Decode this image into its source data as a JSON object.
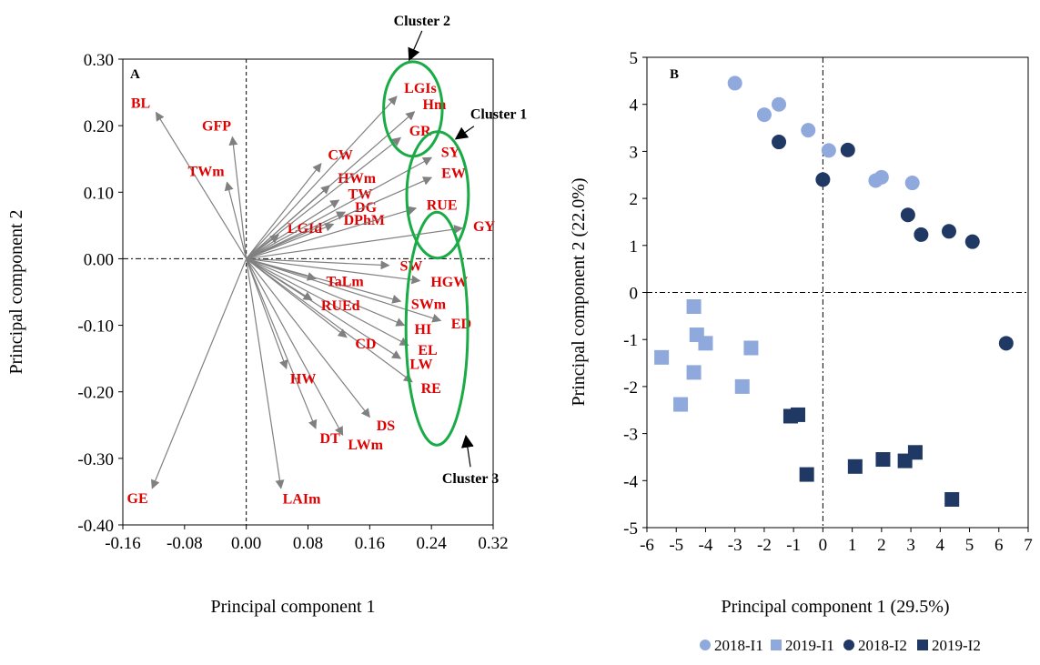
{
  "colors": {
    "arrow": "#808080",
    "var_label": "#e00000",
    "cluster_outline": "#1aab47",
    "s2018_I1": "#8fa9dc",
    "s2019_I1": "#8fa9dc",
    "s2018_I2": "#1f3864",
    "s2019_I2": "#1f3864"
  },
  "chart_data": [
    {
      "type": "biplot",
      "panel_label": "A",
      "xlabel": "Principal component 1",
      "ylabel": "Principal component 2",
      "xlim": [
        -0.16,
        0.32
      ],
      "ylim": [
        -0.4,
        0.3
      ],
      "xticks": [
        "-0.16",
        "-0.08",
        "0.00",
        "0.08",
        "0.16",
        "0.24",
        "0.32"
      ],
      "yticks": [
        "0.30",
        "0.20",
        "0.10",
        "0.00",
        "-0.10",
        "-0.20",
        "-0.30",
        "-0.40"
      ],
      "grid": false,
      "reference_lines": [
        "x=0 dashed",
        "y=0 dash-dot"
      ],
      "vectors": [
        {
          "label": "BL",
          "x": -0.117,
          "y": 0.22
        },
        {
          "label": "GFP",
          "x": -0.018,
          "y": 0.183
        },
        {
          "label": "TWm",
          "x": -0.025,
          "y": 0.115
        },
        {
          "label": "CW",
          "x": 0.097,
          "y": 0.143
        },
        {
          "label": "HWm",
          "x": 0.108,
          "y": 0.11
        },
        {
          "label": "TW",
          "x": 0.12,
          "y": 0.088
        },
        {
          "label": "DG",
          "x": 0.128,
          "y": 0.07
        },
        {
          "label": "DPhM",
          "x": 0.113,
          "y": 0.052
        },
        {
          "label": "LGId",
          "x": 0.042,
          "y": 0.036
        },
        {
          "label": "LGIs",
          "x": 0.195,
          "y": 0.244
        },
        {
          "label": "Hm",
          "x": 0.218,
          "y": 0.221
        },
        {
          "label": "GR",
          "x": 0.2,
          "y": 0.182
        },
        {
          "label": "SY",
          "x": 0.24,
          "y": 0.152
        },
        {
          "label": "EW",
          "x": 0.24,
          "y": 0.122
        },
        {
          "label": "RUE",
          "x": 0.22,
          "y": 0.076
        },
        {
          "label": "GY",
          "x": 0.28,
          "y": 0.046
        },
        {
          "label": "SW",
          "x": 0.185,
          "y": -0.01
        },
        {
          "label": "HGW",
          "x": 0.225,
          "y": -0.033
        },
        {
          "label": "SWm",
          "x": 0.2,
          "y": -0.064
        },
        {
          "label": "ED",
          "x": 0.252,
          "y": -0.093
        },
        {
          "label": "HI",
          "x": 0.205,
          "y": -0.1
        },
        {
          "label": "EL",
          "x": 0.21,
          "y": -0.13
        },
        {
          "label": "LW",
          "x": 0.2,
          "y": -0.15
        },
        {
          "label": "RE",
          "x": 0.215,
          "y": -0.185
        },
        {
          "label": "TaLm",
          "x": 0.09,
          "y": -0.03
        },
        {
          "label": "RUEd",
          "x": 0.085,
          "y": -0.062
        },
        {
          "label": "CD",
          "x": 0.13,
          "y": -0.118
        },
        {
          "label": "DS",
          "x": 0.16,
          "y": -0.238
        },
        {
          "label": "LWm",
          "x": 0.125,
          "y": -0.265
        },
        {
          "label": "DT",
          "x": 0.09,
          "y": -0.255
        },
        {
          "label": "HW",
          "x": 0.052,
          "y": -0.165
        },
        {
          "label": "LAIm",
          "x": 0.045,
          "y": -0.345
        },
        {
          "label": "GE",
          "x": -0.122,
          "y": -0.345
        }
      ],
      "clusters": [
        {
          "label": "Cluster 1",
          "cx": 0.248,
          "cy": 0.096,
          "rx": 0.04,
          "ry": 0.095
        },
        {
          "label": "Cluster 2",
          "cx": 0.216,
          "cy": 0.225,
          "rx": 0.038,
          "ry": 0.071
        },
        {
          "label": "Cluster 3",
          "cx": 0.247,
          "cy": -0.105,
          "rx": 0.04,
          "ry": 0.175
        }
      ]
    },
    {
      "type": "scatter",
      "panel_label": "B",
      "xlabel": "Principal component 1 (29.5%)",
      "ylabel": "Principal component 2 (22.0%)",
      "xlim": [
        -6,
        7
      ],
      "ylim": [
        -5,
        5
      ],
      "xticks": [
        "-6",
        "-5",
        "-4",
        "-3",
        "-2",
        "-1",
        "0",
        "1",
        "2",
        "3",
        "4",
        "5",
        "6",
        "7"
      ],
      "yticks": [
        "5",
        "4",
        "3",
        "2",
        "1",
        "0",
        "-1",
        "-2",
        "-3",
        "-4",
        "-5"
      ],
      "grid": false,
      "legend_position": "bottom",
      "reference_lines": [
        "x=0 dash-dot",
        "y=0 dash-dot"
      ],
      "series": [
        {
          "name": "2018-I1",
          "marker": "circle",
          "color_key": "s2018_I1",
          "points": [
            [
              -3.0,
              4.45
            ],
            [
              -2.0,
              3.78
            ],
            [
              -1.5,
              4.0
            ],
            [
              -0.5,
              3.45
            ],
            [
              0.2,
              3.02
            ],
            [
              1.8,
              2.38
            ],
            [
              2.0,
              2.45
            ],
            [
              3.05,
              2.33
            ]
          ]
        },
        {
          "name": "2019-I1",
          "marker": "square",
          "color_key": "s2019_I1",
          "points": [
            [
              -5.5,
              -1.38
            ],
            [
              -4.85,
              -2.38
            ],
            [
              -4.4,
              -0.3
            ],
            [
              -4.3,
              -0.9
            ],
            [
              -4.0,
              -1.08
            ],
            [
              -4.4,
              -1.7
            ],
            [
              -2.45,
              -1.18
            ],
            [
              -2.75,
              -2.0
            ]
          ]
        },
        {
          "name": "2018-I2",
          "marker": "circle",
          "color_key": "s2018_I2",
          "points": [
            [
              -1.5,
              3.2
            ],
            [
              0.85,
              3.03
            ],
            [
              0.0,
              2.4
            ],
            [
              2.9,
              1.65
            ],
            [
              3.35,
              1.23
            ],
            [
              4.3,
              1.3
            ],
            [
              5.1,
              1.08
            ],
            [
              6.25,
              -1.08
            ]
          ]
        },
        {
          "name": "2019-I2",
          "marker": "square",
          "color_key": "s2019_I2",
          "points": [
            [
              -1.1,
              -2.63
            ],
            [
              -0.85,
              -2.6
            ],
            [
              -0.55,
              -3.87
            ],
            [
              1.1,
              -3.7
            ],
            [
              2.05,
              -3.55
            ],
            [
              2.8,
              -3.58
            ],
            [
              3.15,
              -3.4
            ],
            [
              4.4,
              -4.4
            ]
          ]
        }
      ]
    }
  ]
}
